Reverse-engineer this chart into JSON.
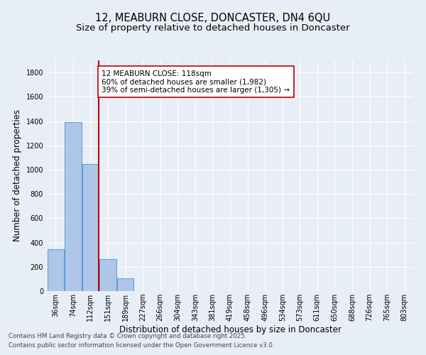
{
  "title_line1": "12, MEABURN CLOSE, DONCASTER, DN4 6QU",
  "title_line2": "Size of property relative to detached houses in Doncaster",
  "xlabel": "Distribution of detached houses by size in Doncaster",
  "ylabel": "Number of detached properties",
  "footnote1": "Contains HM Land Registry data © Crown copyright and database right 2025.",
  "footnote2": "Contains public sector information licensed under the Open Government Licence v3.0.",
  "categories": [
    "36sqm",
    "74sqm",
    "112sqm",
    "151sqm",
    "189sqm",
    "227sqm",
    "266sqm",
    "304sqm",
    "343sqm",
    "381sqm",
    "419sqm",
    "458sqm",
    "496sqm",
    "534sqm",
    "573sqm",
    "611sqm",
    "650sqm",
    "688sqm",
    "726sqm",
    "765sqm",
    "803sqm"
  ],
  "values": [
    345,
    1390,
    1045,
    265,
    105,
    0,
    0,
    0,
    0,
    0,
    0,
    0,
    0,
    0,
    0,
    0,
    0,
    0,
    0,
    0,
    0
  ],
  "bar_color": "#aec6e8",
  "bar_edge_color": "#5b9bd5",
  "vline_color": "#c00000",
  "annotation_text": "12 MEABURN CLOSE: 118sqm\n60% of detached houses are smaller (1,982)\n39% of semi-detached houses are larger (1,305) →",
  "annotation_box_color": "white",
  "annotation_box_edge_color": "#c00000",
  "ylim": [
    0,
    1900
  ],
  "xlim": [
    -0.5,
    20.5
  ],
  "background_color": "#e8eef6",
  "grid_color": "white",
  "title_fontsize": 10.5,
  "subtitle_fontsize": 9.5,
  "axis_label_fontsize": 8.5,
  "tick_fontsize": 7,
  "annotation_fontsize": 7.5,
  "footnote_fontsize": 6.2
}
